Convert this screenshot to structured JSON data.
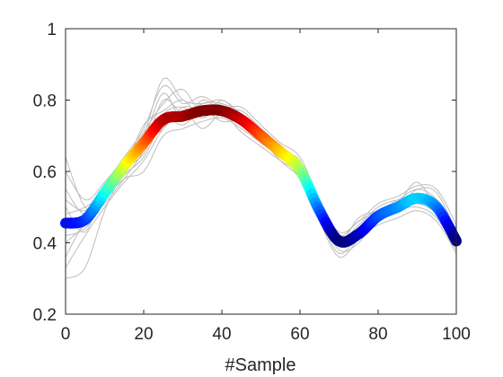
{
  "chart_data": {
    "type": "line",
    "title": "",
    "xlabel": "#Sample",
    "ylabel": "",
    "xlim": [
      0,
      100
    ],
    "ylim": [
      0.2,
      1
    ],
    "xticks": [
      0,
      20,
      40,
      60,
      80,
      100
    ],
    "yticks": [
      0.2,
      0.4,
      0.6,
      0.8,
      1
    ],
    "xtick_labels": [
      "0",
      "20",
      "40",
      "60",
      "80",
      "100"
    ],
    "ytick_labels": [
      "0.2",
      "0.4",
      "0.6",
      "0.8",
      "1"
    ],
    "grid": false,
    "legend": "none",
    "colormap": "jet (by value, blue = low, dark red = high)",
    "background_series_color": "#bdbdbd",
    "series": [
      {
        "role": "mean (thick, colored by value)",
        "x": [
          0,
          5,
          10,
          15,
          20,
          25,
          30,
          35,
          40,
          45,
          50,
          55,
          60,
          65,
          70,
          75,
          80,
          85,
          90,
          95,
          100
        ],
        "y": [
          0.455,
          0.465,
          0.54,
          0.615,
          0.68,
          0.745,
          0.755,
          0.77,
          0.77,
          0.745,
          0.7,
          0.655,
          0.605,
          0.49,
          0.405,
          0.425,
          0.475,
          0.5,
          0.525,
          0.5,
          0.405
        ]
      },
      {
        "role": "individual sample",
        "x": [
          0,
          5,
          10,
          15,
          20,
          25,
          30,
          35,
          40,
          45,
          50,
          55,
          60,
          65,
          70,
          75,
          80,
          85,
          90,
          95,
          100
        ],
        "y": [
          0.64,
          0.5,
          0.52,
          0.6,
          0.7,
          0.86,
          0.8,
          0.79,
          0.8,
          0.76,
          0.7,
          0.66,
          0.6,
          0.47,
          0.4,
          0.47,
          0.49,
          0.52,
          0.55,
          0.52,
          0.42
        ]
      },
      {
        "role": "individual sample",
        "x": [
          0,
          5,
          10,
          15,
          20,
          25,
          30,
          35,
          40,
          45,
          50,
          55,
          60,
          65,
          70,
          75,
          80,
          85,
          90,
          95,
          100
        ],
        "y": [
          0.3,
          0.33,
          0.49,
          0.6,
          0.65,
          0.76,
          0.78,
          0.75,
          0.78,
          0.73,
          0.7,
          0.64,
          0.62,
          0.48,
          0.38,
          0.4,
          0.47,
          0.5,
          0.51,
          0.48,
          0.39
        ]
      },
      {
        "role": "individual sample",
        "x": [
          0,
          5,
          10,
          15,
          20,
          25,
          30,
          35,
          40,
          45,
          50,
          55,
          60,
          65,
          70,
          75,
          80,
          85,
          90,
          95,
          100
        ],
        "y": [
          0.55,
          0.48,
          0.55,
          0.62,
          0.69,
          0.82,
          0.74,
          0.8,
          0.77,
          0.77,
          0.72,
          0.67,
          0.61,
          0.5,
          0.42,
          0.44,
          0.48,
          0.5,
          0.55,
          0.54,
          0.43
        ]
      },
      {
        "role": "individual sample",
        "x": [
          0,
          5,
          10,
          15,
          20,
          25,
          30,
          35,
          40,
          45,
          50,
          55,
          60,
          65,
          70,
          75,
          80,
          85,
          90,
          95,
          100
        ],
        "y": [
          0.4,
          0.45,
          0.52,
          0.58,
          0.6,
          0.7,
          0.72,
          0.74,
          0.75,
          0.72,
          0.68,
          0.64,
          0.58,
          0.46,
          0.36,
          0.41,
          0.46,
          0.49,
          0.5,
          0.47,
          0.38
        ]
      },
      {
        "role": "individual sample",
        "x": [
          0,
          5,
          10,
          15,
          20,
          25,
          30,
          35,
          40,
          45,
          50,
          55,
          60,
          65,
          70,
          75,
          80,
          85,
          90,
          95,
          100
        ],
        "y": [
          0.5,
          0.43,
          0.56,
          0.63,
          0.71,
          0.79,
          0.83,
          0.76,
          0.79,
          0.75,
          0.71,
          0.66,
          0.63,
          0.51,
          0.41,
          0.45,
          0.5,
          0.52,
          0.52,
          0.51,
          0.44
        ]
      },
      {
        "role": "individual sample",
        "x": [
          0,
          5,
          10,
          15,
          20,
          25,
          30,
          35,
          40,
          45,
          50,
          55,
          60,
          65,
          70,
          75,
          80,
          85,
          90,
          95,
          100
        ],
        "y": [
          0.33,
          0.42,
          0.5,
          0.57,
          0.63,
          0.72,
          0.77,
          0.72,
          0.76,
          0.71,
          0.67,
          0.63,
          0.59,
          0.47,
          0.37,
          0.42,
          0.45,
          0.47,
          0.49,
          0.46,
          0.37
        ]
      },
      {
        "role": "individual sample",
        "x": [
          0,
          5,
          10,
          15,
          20,
          25,
          30,
          35,
          40,
          45,
          50,
          55,
          60,
          65,
          70,
          75,
          80,
          85,
          90,
          95,
          100
        ],
        "y": [
          0.6,
          0.52,
          0.57,
          0.64,
          0.72,
          0.84,
          0.79,
          0.81,
          0.78,
          0.78,
          0.73,
          0.68,
          0.64,
          0.52,
          0.43,
          0.46,
          0.51,
          0.53,
          0.56,
          0.55,
          0.45
        ]
      },
      {
        "role": "individual sample",
        "x": [
          0,
          5,
          10,
          15,
          20,
          25,
          30,
          35,
          40,
          45,
          50,
          55,
          60,
          65,
          70,
          75,
          80,
          85,
          90,
          95,
          100
        ],
        "y": [
          0.45,
          0.47,
          0.53,
          0.6,
          0.67,
          0.75,
          0.73,
          0.77,
          0.74,
          0.74,
          0.69,
          0.65,
          0.6,
          0.49,
          0.39,
          0.43,
          0.47,
          0.5,
          0.53,
          0.5,
          0.4
        ]
      },
      {
        "role": "individual sample",
        "x": [
          0,
          5,
          10,
          15,
          20,
          25,
          30,
          35,
          40,
          45,
          50,
          55,
          60,
          65,
          70,
          75,
          80,
          85,
          90,
          95,
          100
        ],
        "y": [
          0.36,
          0.46,
          0.51,
          0.58,
          0.66,
          0.8,
          0.76,
          0.78,
          0.76,
          0.73,
          0.69,
          0.63,
          0.58,
          0.48,
          0.41,
          0.44,
          0.48,
          0.51,
          0.57,
          0.49,
          0.4
        ]
      },
      {
        "role": "individual sample",
        "x": [
          0,
          5,
          10,
          15,
          20,
          25,
          30,
          35,
          40,
          45,
          50,
          55,
          60,
          65,
          70,
          75,
          80,
          85,
          90,
          95,
          100
        ],
        "y": [
          0.52,
          0.49,
          0.55,
          0.61,
          0.73,
          0.77,
          0.8,
          0.75,
          0.8,
          0.75,
          0.72,
          0.67,
          0.62,
          0.5,
          0.42,
          0.46,
          0.49,
          0.51,
          0.52,
          0.52,
          0.42
        ]
      },
      {
        "role": "individual sample",
        "x": [
          0,
          5,
          10,
          15,
          20,
          25,
          30,
          35,
          40,
          45,
          50,
          55,
          60,
          65,
          70,
          75,
          80,
          85,
          90,
          95,
          100
        ],
        "y": [
          0.42,
          0.44,
          0.52,
          0.59,
          0.64,
          0.74,
          0.75,
          0.79,
          0.79,
          0.76,
          0.71,
          0.65,
          0.6,
          0.48,
          0.39,
          0.41,
          0.46,
          0.49,
          0.51,
          0.5,
          0.41
        ]
      },
      {
        "role": "individual sample",
        "x": [
          0,
          5,
          10,
          15,
          20,
          25,
          30,
          35,
          40,
          45,
          50,
          55,
          60,
          65,
          70,
          75,
          80,
          85,
          90,
          95,
          100
        ],
        "y": [
          0.48,
          0.5,
          0.54,
          0.61,
          0.68,
          0.72,
          0.78,
          0.77,
          0.77,
          0.74,
          0.7,
          0.66,
          0.61,
          0.49,
          0.4,
          0.43,
          0.47,
          0.5,
          0.52,
          0.5,
          0.41
        ]
      }
    ]
  }
}
